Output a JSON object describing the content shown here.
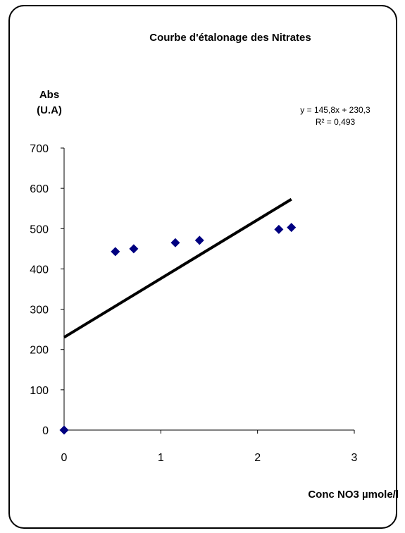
{
  "chart_data": {
    "type": "scatter",
    "title": "Courbe d'étalonage  des Nitrates",
    "ylabel_line1": "Abs",
    "ylabel_line2": "(U.A)",
    "xlabel": "Conc NO3 µmole/l",
    "xlim": [
      0,
      3
    ],
    "ylim": [
      0,
      700
    ],
    "x_ticks": [
      0,
      1,
      2,
      3
    ],
    "y_ticks": [
      0,
      100,
      200,
      300,
      400,
      500,
      600,
      700
    ],
    "grid": false,
    "legend": "none",
    "series": [
      {
        "marker": "diamond",
        "color": "#000080",
        "x": [
          0,
          0.53,
          0.72,
          1.15,
          1.4,
          2.22,
          2.35
        ],
        "y": [
          0,
          443,
          450,
          465,
          471,
          498,
          503
        ]
      }
    ],
    "trendline": {
      "type": "linear",
      "slope": 145.8,
      "intercept": 230.3,
      "x_range": [
        0,
        2.35
      ],
      "color": "#000000",
      "equation_label": "y = 145,8x + 230,3",
      "r2_label": "R² = 0,493"
    }
  }
}
